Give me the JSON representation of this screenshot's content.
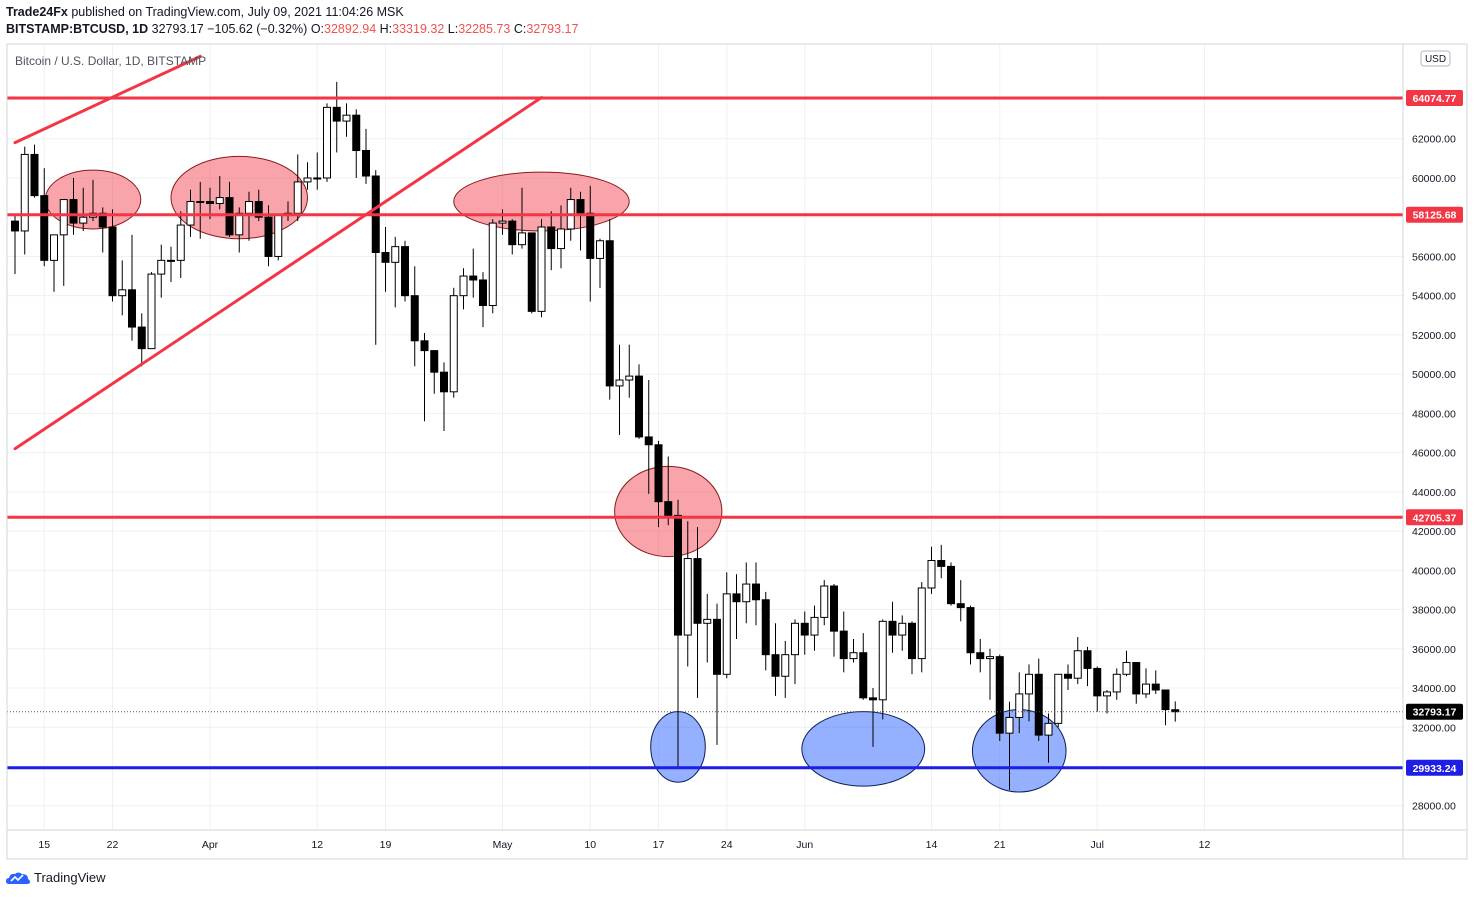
{
  "header": {
    "author": "Trade24Fx",
    "published": "published on TradingView.com, July 09, 2021 11:04:26 MSK",
    "symbol": "BITSTAMP:BTCUSD, 1D",
    "last": "32793.17",
    "change": "−105.62 (−0.32%)",
    "o_label": "O:",
    "o_val": "32892.94",
    "h_label": "H:",
    "h_val": "33319.32",
    "l_label": "L:",
    "l_val": "32285.73",
    "c_label": "C:",
    "c_val": "32793.17"
  },
  "footer": {
    "brand": "TradingView"
  },
  "chart_data": {
    "type": "candlestick",
    "title": "Bitcoin / U.S. Dollar, 1D, BITSTAMP",
    "currency_badge": "USD",
    "ylim": [
      27000,
      65000
    ],
    "y_ticks": [
      28000,
      30000,
      32000,
      34000,
      36000,
      38000,
      40000,
      42000,
      44000,
      46000,
      48000,
      50000,
      52000,
      54000,
      56000,
      58000,
      60000,
      62000,
      64000
    ],
    "y_tick_labels": [
      "28000.00",
      "30000.00",
      "32000.00",
      "34000.00",
      "36000.00",
      "38000.00",
      "40000.00",
      "42000.00",
      "44000.00",
      "46000.00",
      "48000.00",
      "50000.00",
      "52000.00",
      "54000.00",
      "56000.00",
      "58000.00",
      "60000.00",
      "62000.00",
      "64000.00"
    ],
    "x_ticks": [
      {
        "date": "2021-03-15",
        "label": "15"
      },
      {
        "date": "2021-03-22",
        "label": "22"
      },
      {
        "date": "2021-04-01",
        "label": "Apr"
      },
      {
        "date": "2021-04-12",
        "label": "12"
      },
      {
        "date": "2021-04-19",
        "label": "19"
      },
      {
        "date": "2021-05-01",
        "label": "May"
      },
      {
        "date": "2021-05-10",
        "label": "10"
      },
      {
        "date": "2021-05-17",
        "label": "17"
      },
      {
        "date": "2021-05-24",
        "label": "24"
      },
      {
        "date": "2021-06-01",
        "label": "Jun"
      },
      {
        "date": "2021-06-14",
        "label": "14"
      },
      {
        "date": "2021-06-21",
        "label": "21"
      },
      {
        "date": "2021-07-01",
        "label": "Jul"
      },
      {
        "date": "2021-07-12",
        "label": "12"
      }
    ],
    "x_range": [
      "2021-03-12",
      "2021-07-14"
    ],
    "grid": true,
    "candles": [
      [
        "2021-03-12",
        57800,
        58100,
        55100,
        57300
      ],
      [
        "2021-03-13",
        57300,
        61600,
        56100,
        61200
      ],
      [
        "2021-03-14",
        61200,
        61700,
        59000,
        59100
      ],
      [
        "2021-03-15",
        59100,
        60500,
        55500,
        55800
      ],
      [
        "2021-03-16",
        55800,
        57100,
        54200,
        57100
      ],
      [
        "2021-03-17",
        57100,
        58900,
        54500,
        58900
      ],
      [
        "2021-03-18",
        58900,
        60000,
        57100,
        57700
      ],
      [
        "2021-03-19",
        57700,
        59500,
        57300,
        58000
      ],
      [
        "2021-03-20",
        58000,
        59900,
        57800,
        58200
      ],
      [
        "2021-03-21",
        58200,
        58500,
        56200,
        57500
      ],
      [
        "2021-03-22",
        57500,
        58400,
        53700,
        54000
      ],
      [
        "2021-03-23",
        54000,
        55800,
        53000,
        54300
      ],
      [
        "2021-03-24",
        54300,
        57100,
        51700,
        52400
      ],
      [
        "2021-03-25",
        52400,
        53100,
        50400,
        51300
      ],
      [
        "2021-03-26",
        51300,
        55200,
        51300,
        55100
      ],
      [
        "2021-03-27",
        55100,
        56600,
        53900,
        55800
      ],
      [
        "2021-03-28",
        55800,
        56500,
        54700,
        55800
      ],
      [
        "2021-03-29",
        55800,
        58300,
        54900,
        57600
      ],
      [
        "2021-03-30",
        57600,
        59400,
        57000,
        58800
      ],
      [
        "2021-03-31",
        58800,
        59800,
        56900,
        58800
      ],
      [
        "2021-04-01",
        58800,
        59500,
        57900,
        58700
      ],
      [
        "2021-04-02",
        58700,
        60100,
        58400,
        59000
      ],
      [
        "2021-04-03",
        59000,
        59800,
        57000,
        57100
      ],
      [
        "2021-04-04",
        57100,
        58500,
        56200,
        58200
      ],
      [
        "2021-04-05",
        58200,
        59300,
        56800,
        58800
      ],
      [
        "2021-04-06",
        58800,
        59400,
        57800,
        58000
      ],
      [
        "2021-04-07",
        58000,
        58600,
        55500,
        56000
      ],
      [
        "2021-04-08",
        56000,
        58100,
        55800,
        58100
      ],
      [
        "2021-04-09",
        58100,
        58800,
        57800,
        58200
      ],
      [
        "2021-04-10",
        58200,
        61200,
        57800,
        59800
      ],
      [
        "2021-04-11",
        59800,
        60800,
        59400,
        60000
      ],
      [
        "2021-04-12",
        60000,
        61300,
        59400,
        60000
      ],
      [
        "2021-04-13",
        60000,
        63800,
        59800,
        63600
      ],
      [
        "2021-04-14",
        63600,
        64900,
        61300,
        62900
      ],
      [
        "2021-04-15",
        62900,
        63800,
        62100,
        63200
      ],
      [
        "2021-04-16",
        63200,
        63500,
        60000,
        61400
      ],
      [
        "2021-04-17",
        61400,
        62500,
        59700,
        60100
      ],
      [
        "2021-04-18",
        60100,
        60400,
        51500,
        56200
      ],
      [
        "2021-04-19",
        56200,
        57500,
        54200,
        55700
      ],
      [
        "2021-04-20",
        55700,
        57000,
        53400,
        56500
      ],
      [
        "2021-04-21",
        56500,
        56800,
        53700,
        54000
      ],
      [
        "2021-04-22",
        54000,
        55500,
        50400,
        51700
      ],
      [
        "2021-04-23",
        51700,
        52100,
        47600,
        51200
      ],
      [
        "2021-04-24",
        51200,
        51200,
        49000,
        50100
      ],
      [
        "2021-04-25",
        50100,
        50600,
        47100,
        49100
      ],
      [
        "2021-04-26",
        49100,
        54400,
        48800,
        54000
      ],
      [
        "2021-04-27",
        54000,
        55400,
        53300,
        55000
      ],
      [
        "2021-04-28",
        55000,
        56400,
        53900,
        54800
      ],
      [
        "2021-04-29",
        54800,
        55200,
        52400,
        53500
      ],
      [
        "2021-04-30",
        53500,
        57900,
        53100,
        57700
      ],
      [
        "2021-05-01",
        57700,
        58400,
        57100,
        57800
      ],
      [
        "2021-05-02",
        57800,
        57900,
        56100,
        56600
      ],
      [
        "2021-05-03",
        56600,
        59500,
        56400,
        57200
      ],
      [
        "2021-05-04",
        57200,
        57200,
        53100,
        53200
      ],
      [
        "2021-05-05",
        53200,
        57900,
        52900,
        57500
      ],
      [
        "2021-05-06",
        57500,
        58300,
        55300,
        56400
      ],
      [
        "2021-05-07",
        56400,
        58600,
        55400,
        57400
      ],
      [
        "2021-05-08",
        57400,
        59500,
        56800,
        58900
      ],
      [
        "2021-05-09",
        58900,
        59300,
        56300,
        58200
      ],
      [
        "2021-05-10",
        58200,
        59600,
        53700,
        55900
      ],
      [
        "2021-05-11",
        55900,
        56900,
        54400,
        56800
      ],
      [
        "2021-05-12",
        56800,
        57900,
        48700,
        49400
      ],
      [
        "2021-05-13",
        49400,
        51500,
        46900,
        49700
      ],
      [
        "2021-05-14",
        49700,
        51500,
        48800,
        49900
      ],
      [
        "2021-05-15",
        49900,
        50500,
        46700,
        46800
      ],
      [
        "2021-05-16",
        46800,
        49700,
        43900,
        46400
      ],
      [
        "2021-05-17",
        46400,
        46600,
        42200,
        43500
      ],
      [
        "2021-05-18",
        43500,
        45800,
        42300,
        42800
      ],
      [
        "2021-05-19",
        42800,
        43600,
        30000,
        36700
      ],
      [
        "2021-05-20",
        36700,
        42500,
        35100,
        40600
      ],
      [
        "2021-05-21",
        40600,
        42200,
        33500,
        37300
      ],
      [
        "2021-05-22",
        37300,
        38800,
        35300,
        37500
      ],
      [
        "2021-05-23",
        37500,
        38300,
        31100,
        34700
      ],
      [
        "2021-05-24",
        34700,
        39900,
        34500,
        38800
      ],
      [
        "2021-05-25",
        38800,
        39800,
        36500,
        38400
      ],
      [
        "2021-05-26",
        38400,
        40400,
        37300,
        39300
      ],
      [
        "2021-05-27",
        39300,
        40400,
        37200,
        38500
      ],
      [
        "2021-05-28",
        38500,
        38900,
        34900,
        35700
      ],
      [
        "2021-05-29",
        35700,
        37300,
        33600,
        34600
      ],
      [
        "2021-05-30",
        34600,
        36400,
        33500,
        35700
      ],
      [
        "2021-05-31",
        35700,
        37500,
        34200,
        37300
      ],
      [
        "2021-06-01",
        37300,
        37900,
        35700,
        36700
      ],
      [
        "2021-06-02",
        36700,
        38200,
        35900,
        37600
      ],
      [
        "2021-06-03",
        37600,
        39500,
        37200,
        39200
      ],
      [
        "2021-06-04",
        39200,
        39300,
        35600,
        36900
      ],
      [
        "2021-06-05",
        36900,
        37900,
        34800,
        35500
      ],
      [
        "2021-06-06",
        35500,
        36500,
        35300,
        35800
      ],
      [
        "2021-06-07",
        35800,
        36800,
        33400,
        33500
      ],
      [
        "2021-06-08",
        33500,
        34000,
        31000,
        33400
      ],
      [
        "2021-06-09",
        33400,
        37500,
        32400,
        37400
      ],
      [
        "2021-06-10",
        37400,
        38400,
        35800,
        36700
      ],
      [
        "2021-06-11",
        36700,
        37700,
        35900,
        37300
      ],
      [
        "2021-06-12",
        37300,
        37400,
        34700,
        35500
      ],
      [
        "2021-06-13",
        35500,
        39400,
        34800,
        39100
      ],
      [
        "2021-06-14",
        39100,
        41200,
        38800,
        40500
      ],
      [
        "2021-06-15",
        40500,
        41300,
        39600,
        40200
      ],
      [
        "2021-06-16",
        40200,
        40400,
        38200,
        38300
      ],
      [
        "2021-06-17",
        38300,
        39500,
        37400,
        38100
      ],
      [
        "2021-06-18",
        38100,
        38200,
        35200,
        35800
      ],
      [
        "2021-06-19",
        35800,
        36500,
        34800,
        35500
      ],
      [
        "2021-06-20",
        35500,
        36000,
        33400,
        35600
      ],
      [
        "2021-06-21",
        35600,
        35700,
        31300,
        31700
      ],
      [
        "2021-06-22",
        31700,
        33300,
        28800,
        32500
      ],
      [
        "2021-06-23",
        32500,
        34800,
        31700,
        33700
      ],
      [
        "2021-06-24",
        33700,
        35200,
        32300,
        34700
      ],
      [
        "2021-06-25",
        34700,
        35500,
        31300,
        31600
      ],
      [
        "2021-06-26",
        31600,
        32700,
        30200,
        32200
      ],
      [
        "2021-06-27",
        32200,
        34700,
        32000,
        34700
      ],
      [
        "2021-06-28",
        34700,
        35200,
        33900,
        34500
      ],
      [
        "2021-06-29",
        34500,
        36600,
        34200,
        35900
      ],
      [
        "2021-06-30",
        35900,
        36100,
        34100,
        35000
      ],
      [
        "2021-07-01",
        35000,
        35100,
        32800,
        33600
      ],
      [
        "2021-07-02",
        33600,
        33900,
        32700,
        33800
      ],
      [
        "2021-07-03",
        33800,
        35000,
        33400,
        34700
      ],
      [
        "2021-07-04",
        34700,
        35900,
        34600,
        35300
      ],
      [
        "2021-07-05",
        35300,
        35300,
        33200,
        33700
      ],
      [
        "2021-07-06",
        33700,
        35000,
        33500,
        34200
      ],
      [
        "2021-07-07",
        34200,
        34900,
        33700,
        33900
      ],
      [
        "2021-07-08",
        33900,
        33900,
        32100,
        32900
      ],
      [
        "2021-07-09",
        32893,
        33319,
        32286,
        32793
      ]
    ],
    "horizontal_levels": [
      {
        "value": 64074.77,
        "label": "64074.77",
        "color": "#f23645"
      },
      {
        "value": 58125.68,
        "label": "58125.68",
        "color": "#f23645"
      },
      {
        "value": 42705.37,
        "label": "42705.37",
        "color": "#f23645"
      },
      {
        "value": 29933.24,
        "label": "29933.24",
        "color": "#1e1ee6"
      }
    ],
    "last_price": {
      "value": 32793.17,
      "label": "32793.17"
    },
    "trend_lines": [
      {
        "from": [
          "2021-03-12",
          46200
        ],
        "to": [
          "2021-05-05",
          64100
        ],
        "color": "#f23645"
      },
      {
        "from": [
          "2021-03-12",
          61800
        ],
        "to": [
          "2021-03-31",
          66200
        ],
        "color": "#f23645"
      }
    ],
    "ellipses": [
      {
        "center": [
          "2021-03-20",
          58900
        ],
        "rx_days": 4.9,
        "ry_price": 1500,
        "kind": "resistance",
        "color": "#f23645"
      },
      {
        "center": [
          "2021-04-04",
          59000
        ],
        "rx_days": 7.0,
        "ry_price": 2100,
        "kind": "resistance",
        "color": "#f23645"
      },
      {
        "center": [
          "2021-05-05",
          58800
        ],
        "rx_days": 9.0,
        "ry_price": 1500,
        "kind": "resistance",
        "color": "#f23645"
      },
      {
        "center": [
          "2021-05-18",
          43000
        ],
        "rx_days": 5.5,
        "ry_price": 2300,
        "kind": "resistance",
        "color": "#f23645"
      },
      {
        "center": [
          "2021-05-19",
          31000
        ],
        "rx_days": 2.8,
        "ry_price": 1800,
        "kind": "support",
        "color": "#2962ff"
      },
      {
        "center": [
          "2021-06-07",
          30900
        ],
        "rx_days": 6.3,
        "ry_price": 1900,
        "kind": "support",
        "color": "#2962ff"
      },
      {
        "center": [
          "2021-06-23",
          30800
        ],
        "rx_days": 4.8,
        "ry_price": 2100,
        "kind": "support",
        "color": "#2962ff"
      }
    ],
    "colors": {
      "up_fill": "#ffffff",
      "down_fill": "#000000",
      "outline": "#000000",
      "grid": "#f0f3fa",
      "resistance": "#f23645",
      "support": "#1e1ee6"
    }
  }
}
